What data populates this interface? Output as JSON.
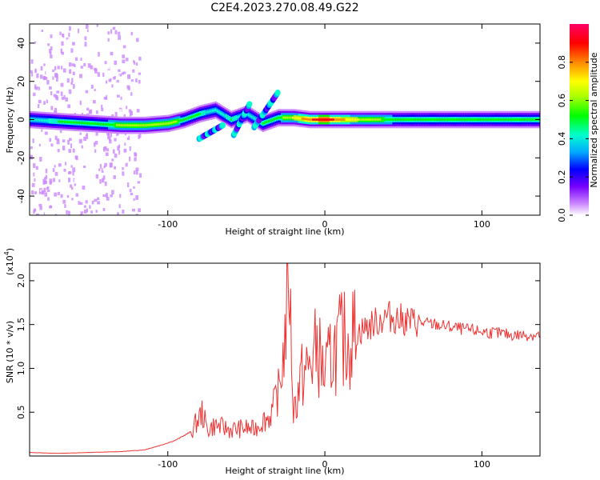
{
  "title": "C2E4.2023.270.08.49.G22",
  "colors": {
    "signal": "#ee3333",
    "frame": "#000000"
  },
  "top_panel": {
    "ylabel": "Frequency (Hz)",
    "xlabel": "Height of straight line (km)",
    "colorbar_label": "Normalized spectral amplitude"
  },
  "bottom_panel": {
    "ylabel": "SNR (10 * v/v)",
    "ylabel_scale": "(x10",
    "ylabel_exp": "4",
    "ylabel_close": ")",
    "xlabel": "Height of straight line (km)"
  },
  "chart_data": [
    {
      "type": "heatmap",
      "title": "C2E4.2023.270.08.49.G22",
      "xlabel": "Height of straight line (km)",
      "ylabel": "Frequency (Hz)",
      "xlim": [
        -188,
        137
      ],
      "ylim": [
        -50,
        50
      ],
      "xticks": [
        -100,
        0,
        100
      ],
      "xtick_labels": [
        "-100",
        "0",
        "100"
      ],
      "yticks": [
        -40,
        -20,
        0,
        20,
        40
      ],
      "ytick_labels": [
        "-40",
        "-20",
        "0",
        "20",
        "40"
      ],
      "colorbar": {
        "label": "Normalized spectral amplitude",
        "range": [
          0,
          1
        ],
        "ticks": [
          0,
          0.2,
          0.4,
          0.6,
          0.8
        ],
        "tick_labels": [
          "0.0",
          "0.2",
          "0.4",
          "0.6",
          "0.8"
        ],
        "colormap": [
          "#ffffff",
          "#cc88ff",
          "#7700ff",
          "#0000ff",
          "#00aaff",
          "#00ffcc",
          "#00ff00",
          "#aaff00",
          "#ffff00",
          "#ff8800",
          "#ff0000",
          "#ff0066"
        ]
      },
      "ridge": [
        {
          "x": -188,
          "y": 0,
          "a": 0.45
        },
        {
          "x": -170,
          "y": -1,
          "a": 0.5
        },
        {
          "x": -150,
          "y": -2,
          "a": 0.55
        },
        {
          "x": -130,
          "y": -3,
          "a": 0.6
        },
        {
          "x": -115,
          "y": -3,
          "a": 0.6
        },
        {
          "x": -100,
          "y": -2,
          "a": 0.65
        },
        {
          "x": -90,
          "y": 0,
          "a": 0.55
        },
        {
          "x": -80,
          "y": 3,
          "a": 0.5
        },
        {
          "x": -70,
          "y": 5,
          "a": 0.45
        },
        {
          "x": -60,
          "y": 0,
          "a": 0.5
        },
        {
          "x": -50,
          "y": 3,
          "a": 0.45
        },
        {
          "x": -40,
          "y": -2,
          "a": 0.5
        },
        {
          "x": -30,
          "y": 1,
          "a": 0.55
        },
        {
          "x": -20,
          "y": 1,
          "a": 0.7
        },
        {
          "x": -10,
          "y": 0,
          "a": 0.85
        },
        {
          "x": 0,
          "y": 0,
          "a": 0.95
        },
        {
          "x": 10,
          "y": 0,
          "a": 0.8
        },
        {
          "x": 30,
          "y": 0,
          "a": 0.6
        },
        {
          "x": 60,
          "y": 0,
          "a": 0.55
        },
        {
          "x": 100,
          "y": 0,
          "a": 0.55
        },
        {
          "x": 137,
          "y": 0,
          "a": 0.5
        }
      ]
    },
    {
      "type": "line",
      "xlabel": "Height of straight line (km)",
      "ylabel": "SNR (10 * v/v) (x10^4)",
      "xlim": [
        -188,
        137
      ],
      "ylim": [
        0,
        2.2
      ],
      "xticks": [
        -100,
        0,
        100
      ],
      "xtick_labels": [
        "-100",
        "0",
        "100"
      ],
      "yticks": [
        0.5,
        1.0,
        1.5,
        2.0
      ],
      "ytick_labels": [
        "0.5",
        "1.0",
        "1.5",
        "2.0"
      ],
      "series": [
        {
          "color": "#ee3333",
          "x": [
            -188,
            -170,
            -150,
            -130,
            -115,
            -105,
            -95,
            -85,
            -78,
            -75,
            -70,
            -60,
            -50,
            -45,
            -40,
            -35,
            -30,
            -28,
            -25,
            -23,
            -20,
            -15,
            -10,
            -5,
            0,
            5,
            10,
            20,
            30,
            40,
            50,
            60,
            70,
            80,
            90,
            100,
            110,
            120,
            130,
            137
          ],
          "y": [
            0.04,
            0.03,
            0.04,
            0.05,
            0.07,
            0.12,
            0.18,
            0.28,
            0.5,
            0.3,
            0.35,
            0.3,
            0.32,
            0.3,
            0.4,
            0.45,
            0.7,
            0.9,
            1.4,
            2.2,
            0.5,
            0.9,
            1.0,
            1.25,
            0.9,
            1.2,
            1.3,
            1.4,
            1.5,
            1.6,
            1.55,
            1.52,
            1.5,
            1.47,
            1.44,
            1.42,
            1.4,
            1.38,
            1.38,
            1.38
          ]
        }
      ]
    }
  ]
}
